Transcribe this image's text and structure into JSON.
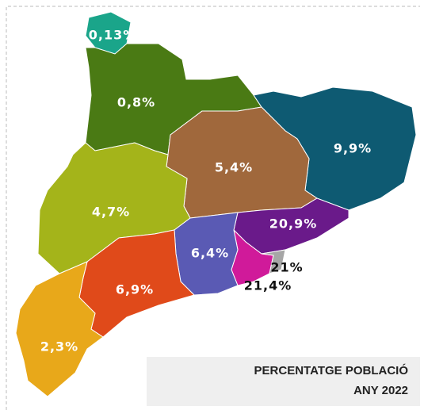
{
  "regions": [
    {
      "label": "0,13%",
      "color": "#1aa58a"
    },
    {
      "label": "0,8%",
      "color": "#4a7a14"
    },
    {
      "label": "9,9%",
      "color": "#0e5a72"
    },
    {
      "label": "5,4%",
      "color": "#a0683c"
    },
    {
      "label": "4,7%",
      "color": "#a4b41a"
    },
    {
      "label": "20,9%",
      "color": "#6a1a8a"
    },
    {
      "label": "21,4%",
      "color": "#d01a9a"
    },
    {
      "label": "21%",
      "color": "#a6a6a6"
    },
    {
      "label": "6,4%",
      "color": "#5a5ab4"
    },
    {
      "label": "6,9%",
      "color": "#e04a1a"
    },
    {
      "label": "2,3%",
      "color": "#e8a81a"
    }
  ],
  "legend": {
    "line1": "PERCENTATGE POBLACIÓ",
    "line2": "ANY 2022"
  }
}
